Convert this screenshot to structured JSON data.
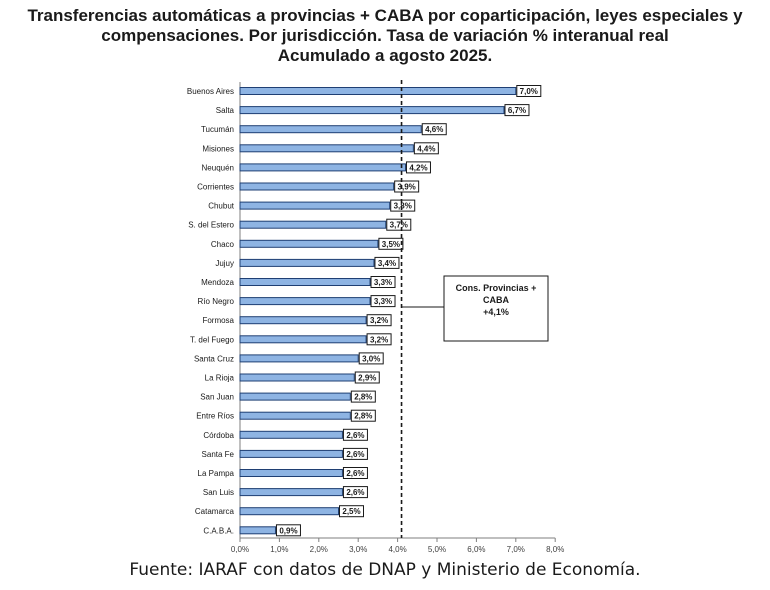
{
  "title_lines": [
    "Transferencias automáticas a provincias + CABA por coparticipación, leyes especiales y",
    "compensaciones. Por jurisdicción. Tasa de variación % interanual real",
    "Acumulado a agosto 2025."
  ],
  "source": "Fuente: IARAF con datos de DNAP y Ministerio de Economía.",
  "colors": {
    "bar_fill": "#8eb4e3",
    "bar_stroke": "#1f3f73",
    "axis": "#7f7f7f",
    "text": "#1a1a1a",
    "reference_line": "#1a1a1a"
  },
  "chart_data": {
    "type": "bar",
    "orientation": "horizontal",
    "categories": [
      "Buenos Aires",
      "Salta",
      "Tucumán",
      "Misiones",
      "Neuquén",
      "Corrientes",
      "Chubut",
      "S. del Estero",
      "Chaco",
      "Jujuy",
      "Mendoza",
      "Río Negro",
      "Formosa",
      "T. del Fuego",
      "Santa Cruz",
      "La Rioja",
      "San Juan",
      "Entre Ríos",
      "Córdoba",
      "Santa Fe",
      "La Pampa",
      "San Luis",
      "Catamarca",
      "C.A.B.A."
    ],
    "values": [
      7.0,
      6.7,
      4.6,
      4.4,
      4.2,
      3.9,
      3.8,
      3.7,
      3.5,
      3.4,
      3.3,
      3.3,
      3.2,
      3.2,
      3.0,
      2.9,
      2.8,
      2.8,
      2.6,
      2.6,
      2.6,
      2.6,
      2.5,
      0.9
    ],
    "data_labels": [
      "7,0%",
      "6,7%",
      "4,6%",
      "4,4%",
      "4,2%",
      "3,9%",
      "3,8%",
      "3,7%",
      "3,5%",
      "3,4%",
      "3,3%",
      "3,3%",
      "3,2%",
      "3,2%",
      "3,0%",
      "2,9%",
      "2,8%",
      "2,8%",
      "2,6%",
      "2,6%",
      "2,6%",
      "2,6%",
      "2,5%",
      "0,9%"
    ],
    "xlim": [
      0,
      8
    ],
    "xticks": [
      0,
      1,
      2,
      3,
      4,
      5,
      6,
      7,
      8
    ],
    "xtick_labels": [
      "0,0%",
      "1,0%",
      "2,0%",
      "3,0%",
      "4,0%",
      "5,0%",
      "6,0%",
      "7,0%",
      "8,0%"
    ],
    "reference_line": {
      "value": 4.1,
      "style": "dashed"
    },
    "annotation": {
      "lines": [
        "Cons. Provincias +",
        "CABA",
        "+4,1%"
      ]
    },
    "grid": false,
    "legend": "none"
  }
}
